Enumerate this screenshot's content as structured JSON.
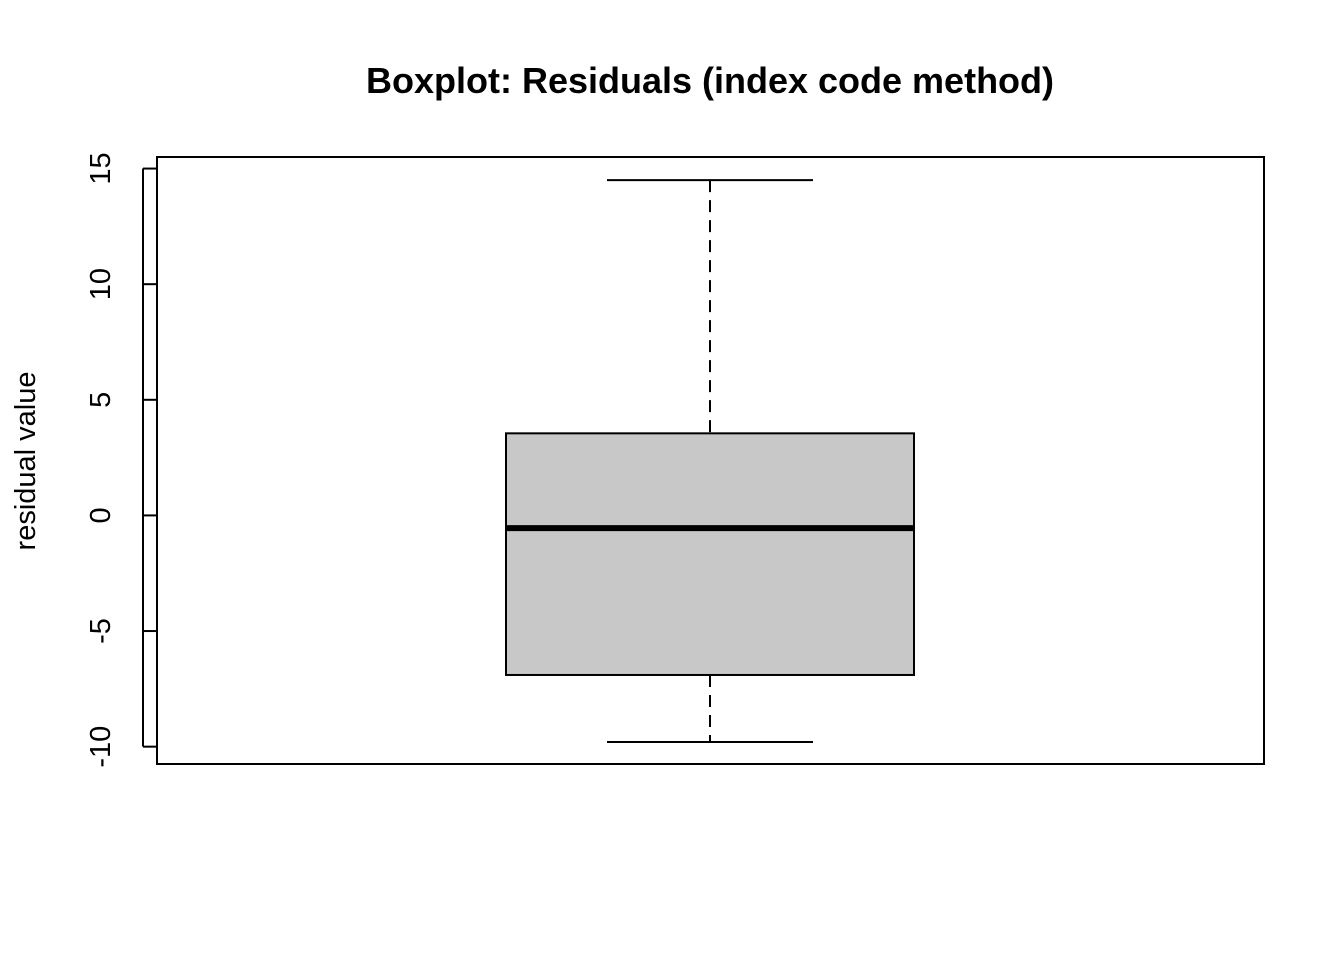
{
  "chart_data": {
    "type": "boxplot",
    "title": "Boxplot: Residuals (index code method)",
    "xlabel": "",
    "ylabel": "residual value",
    "ylim": [
      -10.75,
      15.5
    ],
    "yticks": [
      -10,
      -5,
      0,
      5,
      10,
      15
    ],
    "ytick_labels": [
      "-10",
      "-5",
      "0",
      "5",
      "10",
      "15"
    ],
    "grid": false,
    "box": {
      "lower_whisker": -9.8,
      "q1": -6.9,
      "median": -0.55,
      "q3": 3.55,
      "upper_whisker": 14.5
    },
    "colors": {
      "box_fill": "#c8c8c8",
      "line": "#000000",
      "background": "#ffffff"
    }
  }
}
